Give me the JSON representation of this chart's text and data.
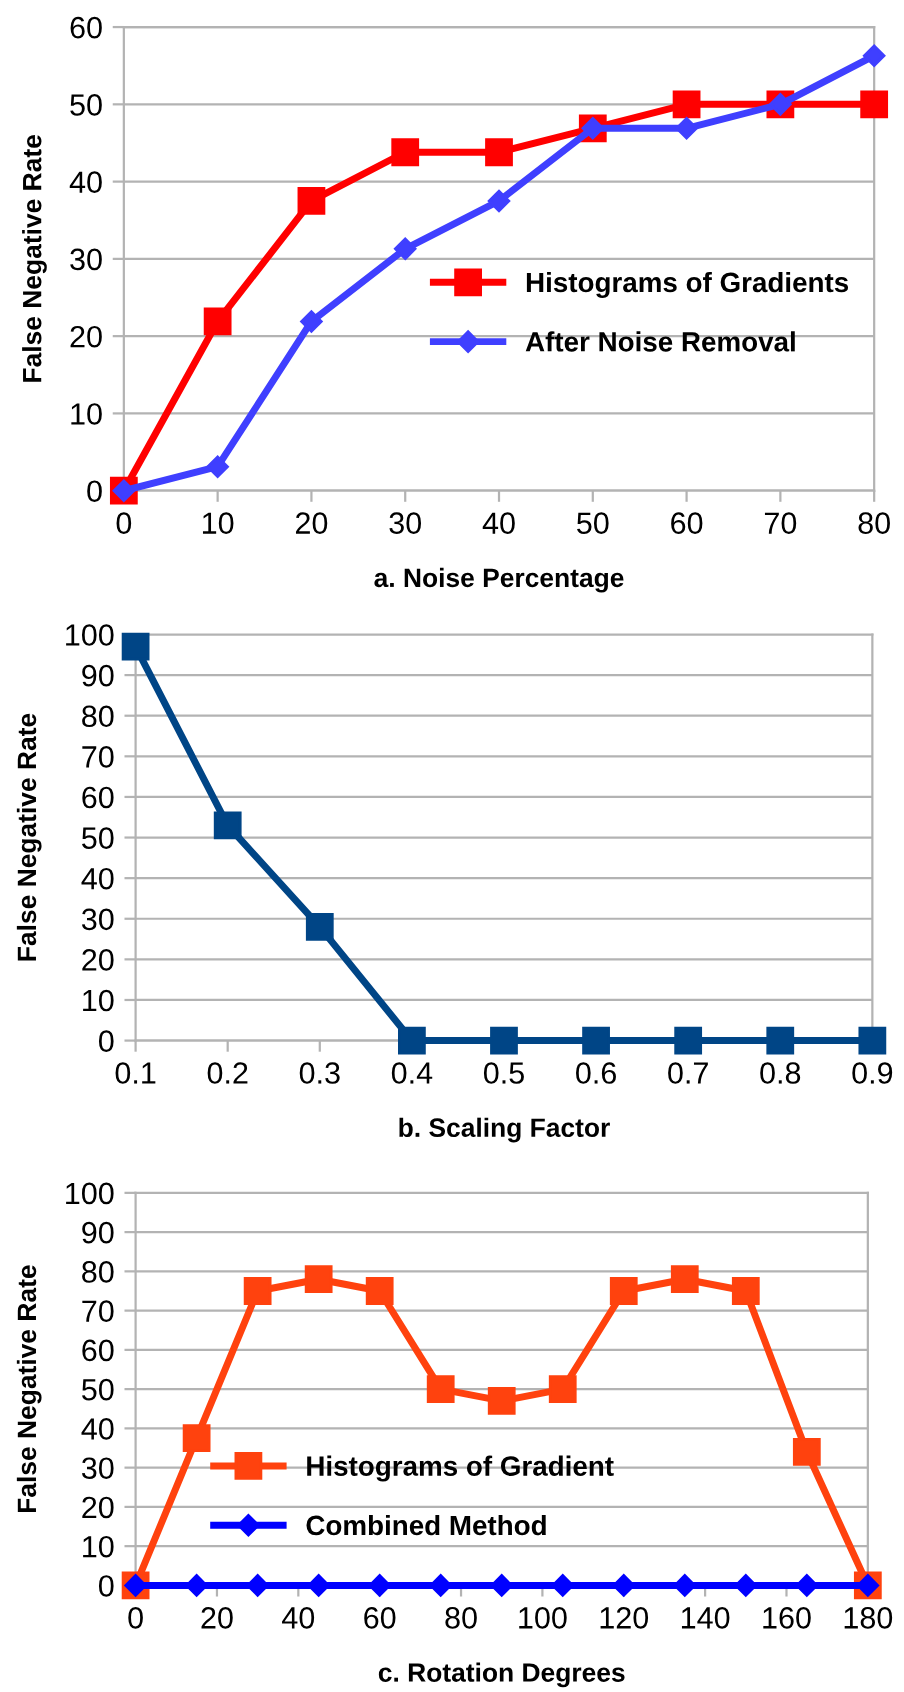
{
  "chart_data": [
    {
      "type": "line",
      "xlabel": "a. Noise Percentage",
      "ylabel": "False Negative Rate",
      "x": [
        0,
        10,
        20,
        30,
        40,
        50,
        60,
        70,
        80
      ],
      "xlim": [
        0,
        80
      ],
      "xticks": [
        0,
        10,
        20,
        30,
        40,
        50,
        60,
        70,
        80
      ],
      "ylim": [
        0,
        60
      ],
      "yticks": [
        0,
        10,
        20,
        30,
        40,
        50,
        60
      ],
      "grid": "y",
      "legend": "right",
      "series": [
        {
          "name": "Histograms of Gradients",
          "color": "#ff0000",
          "marker": "square",
          "values": [
            0,
            21.9,
            37.5,
            43.8,
            43.8,
            46.9,
            50,
            50,
            50
          ]
        },
        {
          "name": "After Noise Removal",
          "color": "#3f3fff",
          "marker": "diamond",
          "values": [
            0,
            3.1,
            21.9,
            31.3,
            37.5,
            46.9,
            46.9,
            50,
            56.3
          ]
        }
      ]
    },
    {
      "type": "line",
      "xlabel": "b. Scaling Factor",
      "ylabel": "False Negative Rate",
      "x": [
        0.1,
        0.2,
        0.3,
        0.4,
        0.5,
        0.6,
        0.7,
        0.8,
        0.9
      ],
      "xlim": [
        0.1,
        0.9
      ],
      "xticks": [
        0.1,
        0.2,
        0.3,
        0.4,
        0.5,
        0.6,
        0.7,
        0.8,
        0.9
      ],
      "ylim": [
        0,
        100
      ],
      "yticks": [
        0,
        10,
        20,
        30,
        40,
        50,
        60,
        70,
        80,
        90,
        100
      ],
      "grid": "y",
      "series": [
        {
          "color": "#004586",
          "marker": "square",
          "values": [
            97,
            53,
            28,
            0,
            0,
            0,
            0,
            0,
            0
          ]
        }
      ]
    },
    {
      "type": "line",
      "xlabel": "c. Rotation Degrees",
      "ylabel": "False Negative Rate",
      "x": [
        0,
        15,
        30,
        45,
        60,
        75,
        90,
        105,
        120,
        135,
        150,
        165,
        180
      ],
      "xlim": [
        0,
        180
      ],
      "xticks": [
        0,
        20,
        40,
        60,
        80,
        100,
        120,
        140,
        160,
        180
      ],
      "ylim": [
        0,
        100
      ],
      "yticks": [
        0,
        10,
        20,
        30,
        40,
        50,
        60,
        70,
        80,
        90,
        100
      ],
      "grid": "y",
      "legend": "bottom",
      "series": [
        {
          "name": "Histograms of Gradient",
          "color": "#ff420e",
          "marker": "square",
          "values": [
            0,
            37.5,
            75,
            78,
            75,
            50,
            47,
            50,
            75,
            78,
            75,
            34,
            0
          ]
        },
        {
          "name": "Combined Method",
          "color": "#0000ff",
          "marker": "diamond",
          "values": [
            0,
            0,
            0,
            0,
            0,
            0,
            0,
            0,
            0,
            0,
            0,
            0,
            0
          ]
        }
      ]
    }
  ]
}
